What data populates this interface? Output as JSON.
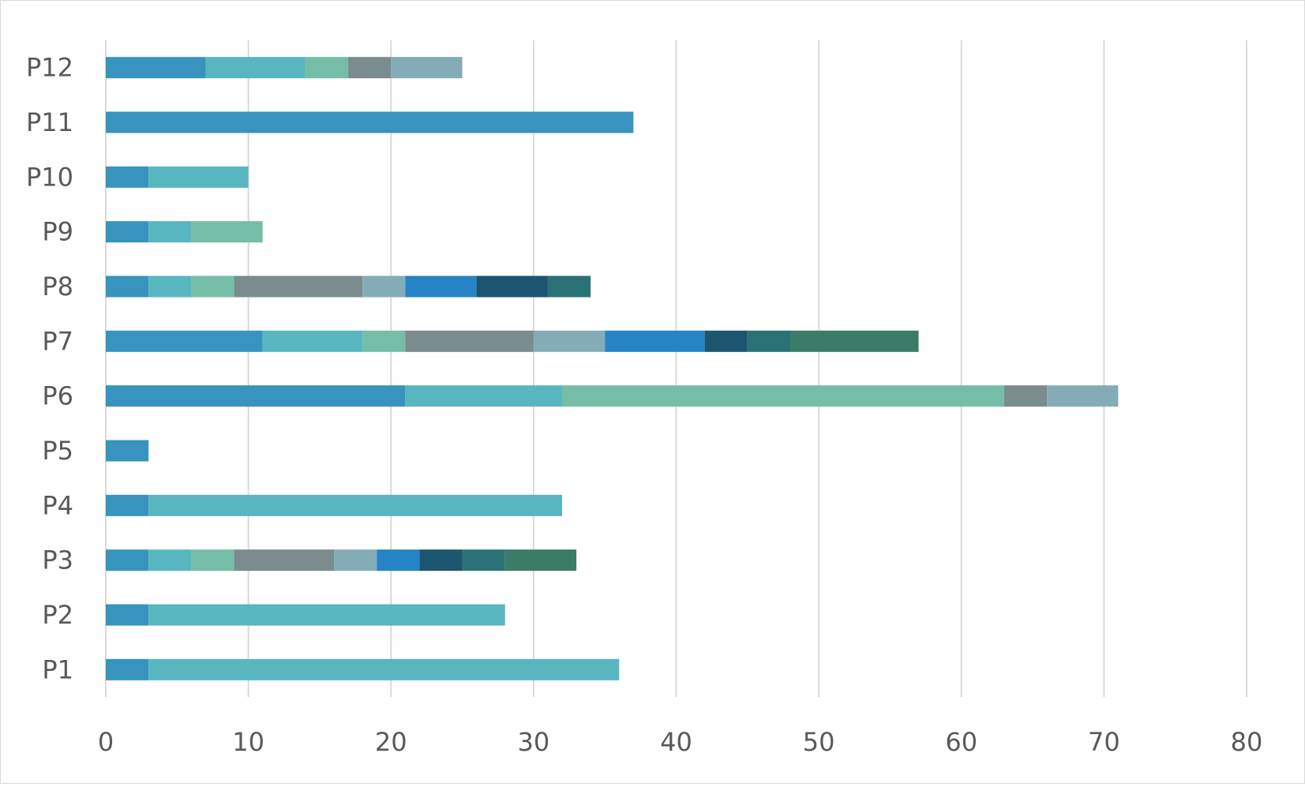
{
  "chart_data": {
    "type": "bar",
    "orientation": "horizontal",
    "stacked": true,
    "title": "",
    "xlabel": "",
    "ylabel": "",
    "xlim": [
      0,
      80
    ],
    "x_ticks": [
      0,
      10,
      20,
      30,
      40,
      50,
      60,
      70,
      80
    ],
    "grid": "vertical",
    "legend": "none",
    "categories": [
      "P1",
      "P2",
      "P3",
      "P4",
      "P5",
      "P6",
      "P7",
      "P8",
      "P9",
      "P10",
      "P11",
      "P12"
    ],
    "series": [
      {
        "color": "#3794BE",
        "values": [
          3,
          3,
          3,
          3,
          3,
          21,
          11,
          3,
          3,
          3,
          37,
          7
        ]
      },
      {
        "color": "#58B6C0",
        "values": [
          33,
          25,
          3,
          29,
          0,
          11,
          7,
          3,
          3,
          7,
          0,
          7
        ]
      },
      {
        "color": "#75BDA7",
        "values": [
          0,
          0,
          3,
          0,
          0,
          31,
          3,
          3,
          5,
          0,
          0,
          3
        ]
      },
      {
        "color": "#7A8C8E",
        "values": [
          0,
          0,
          7,
          0,
          0,
          3,
          9,
          9,
          0,
          0,
          0,
          3
        ]
      },
      {
        "color": "#84ACB6",
        "values": [
          0,
          0,
          3,
          0,
          0,
          5,
          5,
          3,
          0,
          0,
          0,
          5
        ]
      },
      {
        "color": "#2683C6",
        "values": [
          0,
          0,
          3,
          0,
          0,
          0,
          7,
          5,
          0,
          0,
          0,
          0
        ]
      },
      {
        "color": "#1C556F",
        "values": [
          0,
          0,
          3,
          0,
          0,
          0,
          3,
          5,
          0,
          0,
          0,
          0
        ]
      },
      {
        "color": "#2A7276",
        "values": [
          0,
          0,
          3,
          0,
          0,
          0,
          3,
          3,
          0,
          0,
          0,
          0
        ]
      },
      {
        "color": "#3A7C67",
        "values": [
          0,
          0,
          5,
          0,
          0,
          0,
          9,
          0,
          0,
          0,
          0,
          0
        ]
      }
    ]
  }
}
